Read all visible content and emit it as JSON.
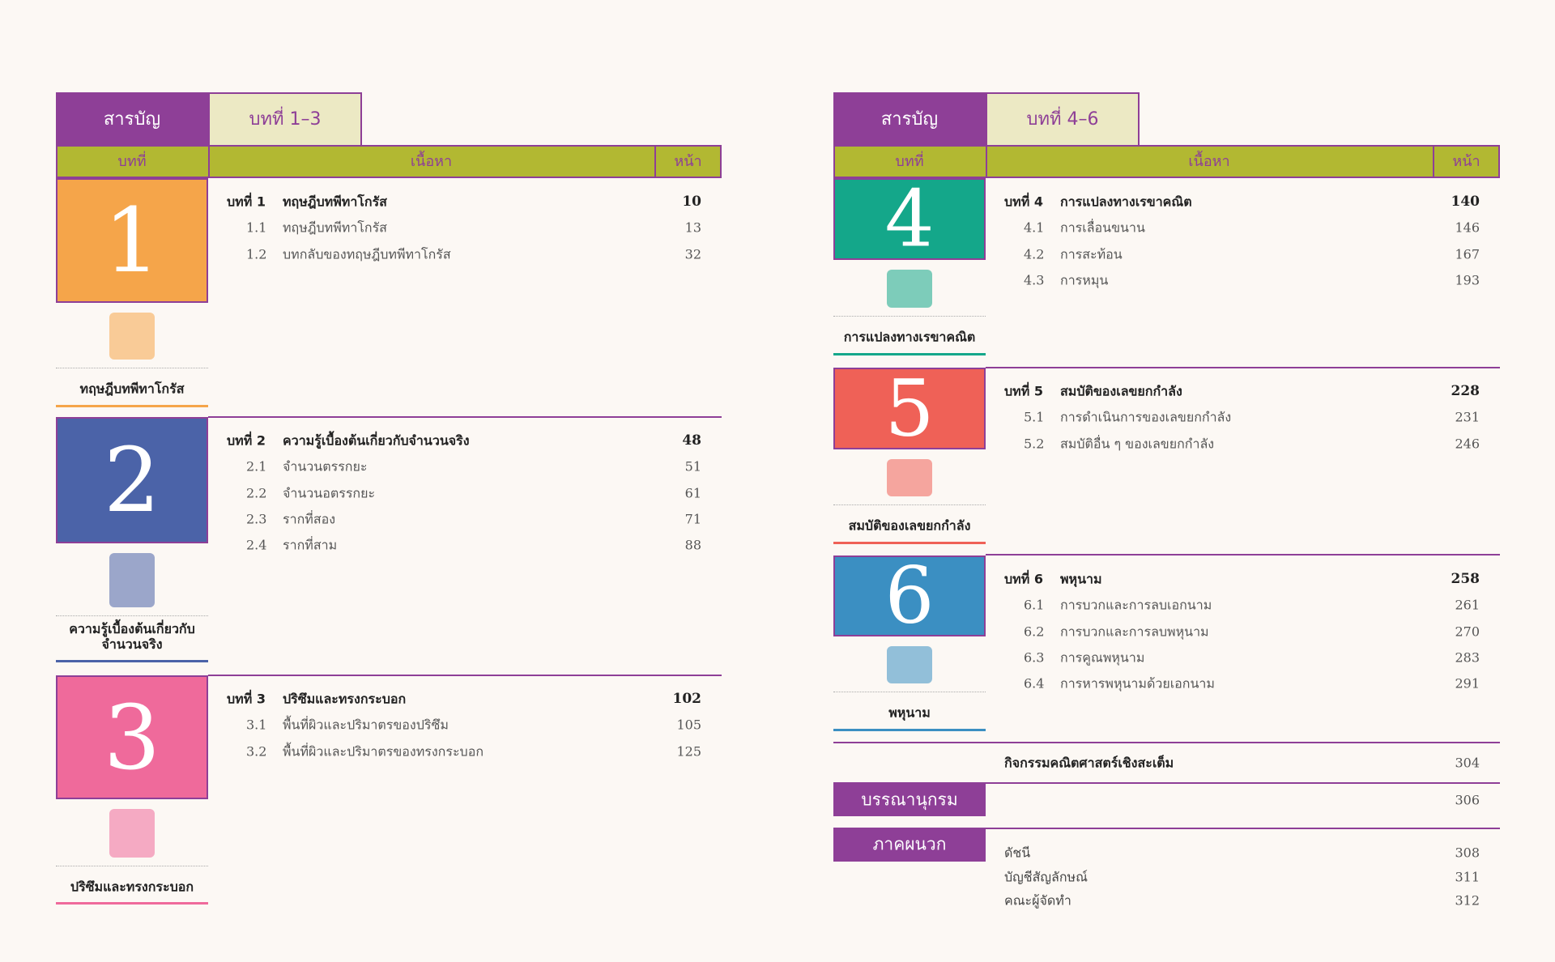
{
  "left": {
    "tab": "สารบัญ",
    "range": "บทที่ 1–3",
    "headers": [
      "บทที่",
      "เนื้อหา",
      "หน้า"
    ],
    "chapters": [
      {
        "number": "1",
        "caption": "ทฤษฎีบทพีทาโกรัส",
        "label": "บทที่ 1",
        "title": "ทฤษฎีบทพีทาโกรัส",
        "page": 10,
        "sections": [
          [
            "1.1",
            "ทฤษฎีบทพีทาโกรัส",
            13
          ],
          [
            "1.2",
            "บทกลับของทฤษฎีบทพีทาโกรัส",
            32
          ]
        ]
      },
      {
        "number": "2",
        "caption": "ความรู้เบื้องต้นเกี่ยวกับ จำนวนจริง",
        "label": "บทที่ 2",
        "title": "ความรู้เบื้องต้นเกี่ยวกับจำนวนจริง",
        "page": 48,
        "sections": [
          [
            "2.1",
            "จำนวนตรรกยะ",
            51
          ],
          [
            "2.2",
            "จำนวนอตรรกยะ",
            61
          ],
          [
            "2.3",
            "รากที่สอง",
            71
          ],
          [
            "2.4",
            "รากที่สาม",
            88
          ]
        ]
      },
      {
        "number": "3",
        "caption": "ปริซึมและทรงกระบอก",
        "label": "บทที่ 3",
        "title": "ปริซึมและทรงกระบอก",
        "page": 102,
        "sections": [
          [
            "3.1",
            "พื้นที่ผิวและปริมาตรของปริซึม",
            105
          ],
          [
            "3.2",
            "พื้นที่ผิวและปริมาตรของทรงกระบอก",
            125
          ]
        ]
      }
    ]
  },
  "right": {
    "tab": "สารบัญ",
    "range": "บทที่ 4–6",
    "headers": [
      "บทที่",
      "เนื้อหา",
      "หน้า"
    ],
    "chapters": [
      {
        "number": "4",
        "caption": "การแปลงทางเรขาคณิต",
        "label": "บทที่ 4",
        "title": "การแปลงทางเรขาคณิต",
        "page": 140,
        "sections": [
          [
            "4.1",
            "การเลื่อนขนาน",
            146
          ],
          [
            "4.2",
            "การสะท้อน",
            167
          ],
          [
            "4.3",
            "การหมุน",
            193
          ]
        ]
      },
      {
        "number": "5",
        "caption": "สมบัติของเลขยกกำลัง",
        "label": "บทที่ 5",
        "title": "สมบัติของเลขยกกำลัง",
        "page": 228,
        "sections": [
          [
            "5.1",
            "การดำเนินการของเลขยกกำลัง",
            231
          ],
          [
            "5.2",
            "สมบัติอื่น ๆ ของเลขยกกำลัง",
            246
          ]
        ]
      },
      {
        "number": "6",
        "caption": "พหุนาม",
        "label": "บทที่ 6",
        "title": "พหุนาม",
        "page": 258,
        "sections": [
          [
            "6.1",
            "การบวกและการลบเอกนาม",
            261
          ],
          [
            "6.2",
            "การบวกและการลบพหุนาม",
            270
          ],
          [
            "6.3",
            "การคูณพหุนาม",
            283
          ],
          [
            "6.4",
            "การหารพหุนามด้วยเอกนาม",
            291
          ]
        ]
      }
    ],
    "activity": {
      "title": "กิจกรรมคณิตศาสตร์เชิงสะเต็ม",
      "page": 304
    },
    "bibliography": {
      "label": "บรรณานุกรม",
      "page": 306
    },
    "appendix": {
      "label": "ภาคผนวก",
      "items": [
        [
          "ดัชนี",
          308
        ],
        [
          "บัญชีสัญลักษณ์",
          311
        ],
        [
          "คณะผู้จัดทำ",
          312
        ]
      ]
    }
  }
}
